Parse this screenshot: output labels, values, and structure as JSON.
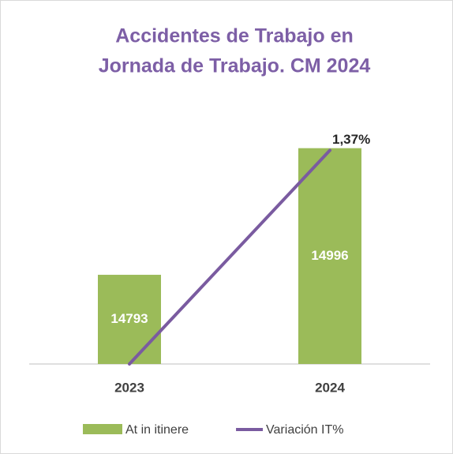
{
  "chart_data": {
    "type": "bar",
    "title": [
      "Accidentes de Trabajo en",
      "Jornada de Trabajo. CM 2024"
    ],
    "categories": [
      "2023",
      "2024"
    ],
    "series": [
      {
        "name": "At in itinere",
        "type": "bar",
        "color": "#9bbb59",
        "values": [
          14793,
          14996
        ]
      },
      {
        "name": "Variación IT%",
        "type": "line",
        "axis": "y2",
        "color": "#7a5ba0",
        "values": [
          0,
          1.37
        ],
        "value_labels": [
          null,
          "1,37%"
        ]
      }
    ],
    "ylim": [
      14650,
      15050
    ],
    "y2lim": [
      0,
      1.6
    ],
    "legend": "bottom"
  }
}
